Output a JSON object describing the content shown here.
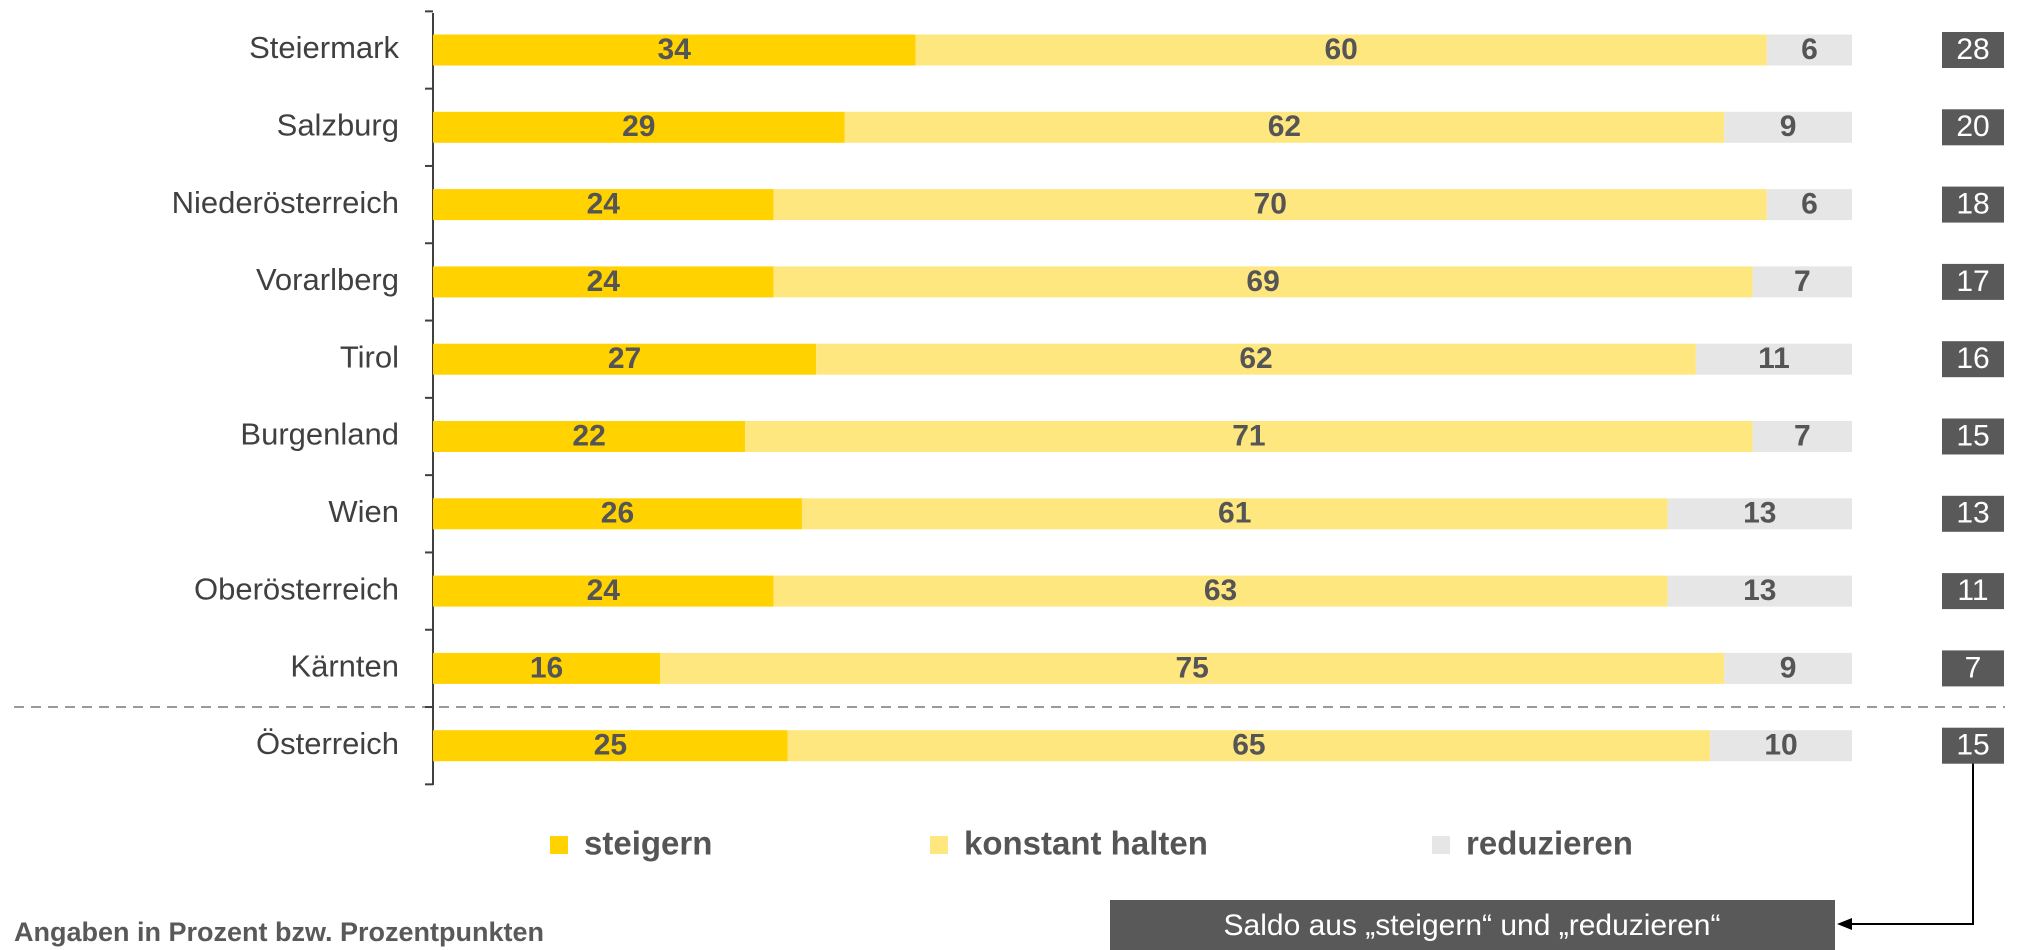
{
  "chart_data": {
    "type": "bar",
    "orientation": "horizontal",
    "stacked": true,
    "categories": [
      "Steiermark",
      "Salzburg",
      "Niederösterreich",
      "Vorarlberg",
      "Tirol",
      "Burgenland",
      "Wien",
      "Oberösterreich",
      "Kärnten",
      "Österreich"
    ],
    "series": [
      {
        "name": "steigern",
        "color": "#FFD200",
        "values": [
          34,
          29,
          24,
          24,
          27,
          22,
          26,
          24,
          16,
          25
        ]
      },
      {
        "name": "konstant halten",
        "color": "#FFE780",
        "values": [
          60,
          62,
          70,
          69,
          62,
          71,
          61,
          63,
          75,
          65
        ]
      },
      {
        "name": "reduzieren",
        "color": "#E6E6E6",
        "values": [
          6,
          9,
          6,
          7,
          11,
          7,
          13,
          13,
          9,
          10
        ]
      }
    ],
    "xlim": [
      0,
      100
    ],
    "saldo": {
      "values": [
        28,
        20,
        18,
        17,
        16,
        15,
        13,
        11,
        7,
        15
      ],
      "color": "#595959"
    },
    "note": "Angaben in Prozent bzw. Prozentpunkten",
    "annotation": "Saldo aus „steigern“ und „reduzieren“"
  }
}
